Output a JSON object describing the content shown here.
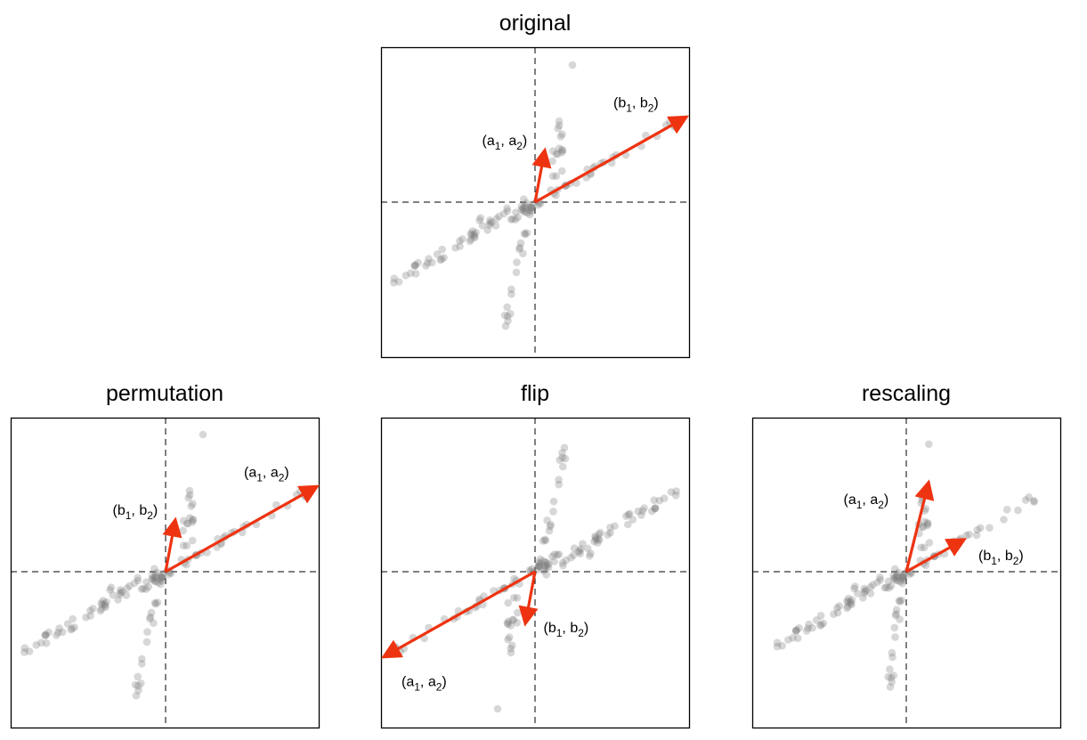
{
  "colors": {
    "arrow": "#ee3311",
    "points": "#7a7a7a",
    "frame": "#000000"
  },
  "panels": [
    {
      "title": "original",
      "arrows": [
        {
          "label": "a",
          "x": 0.3,
          "y": 1.6
        },
        {
          "label": "b",
          "x": 4.8,
          "y": 2.7
        }
      ]
    },
    {
      "title": "permutation",
      "arrows": [
        {
          "label": "b",
          "x": 0.3,
          "y": 1.6
        },
        {
          "label": "a",
          "x": 4.8,
          "y": 2.7
        }
      ]
    },
    {
      "title": "flip",
      "arrows": [
        {
          "label": "a",
          "x": -4.8,
          "y": -2.7
        },
        {
          "label": "b",
          "x": -0.3,
          "y": -1.6
        }
      ]
    },
    {
      "title": "rescaling",
      "arrows": [
        {
          "label": "a",
          "x": 0.7,
          "y": 2.8
        },
        {
          "label": "b",
          "x": 1.8,
          "y": 1.0
        }
      ]
    }
  ],
  "labels": {
    "a_open": "(a",
    "a_sub1": "1",
    "a_mid": ", a",
    "a_sub2": "2",
    "a_close": ")",
    "b_open": "(b",
    "b_sub1": "1",
    "b_mid": ", b",
    "b_sub2": "2",
    "b_close": ")"
  }
}
